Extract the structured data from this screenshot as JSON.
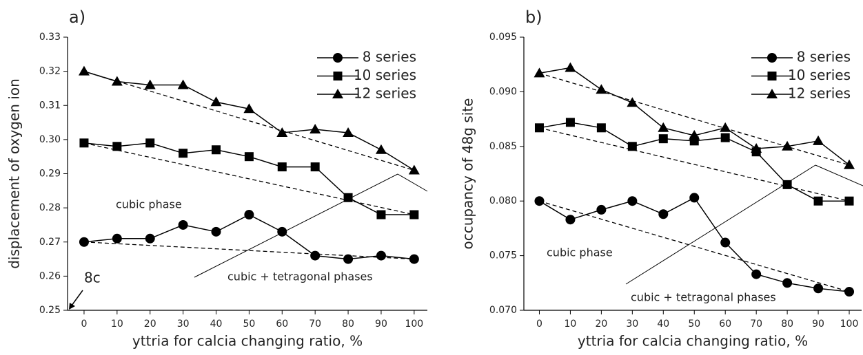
{
  "chart_data": [
    {
      "type": "line",
      "title": "a)",
      "x_label": "yttria for calcia changing ratio, %",
      "y_label": "displacement of oxygen ion",
      "x": [
        0,
        10,
        20,
        30,
        40,
        50,
        60,
        70,
        80,
        90,
        100
      ],
      "series": [
        {
          "name": "8 series",
          "color": "#000000",
          "marker": "circle",
          "values": [
            0.27,
            0.271,
            0.271,
            0.275,
            0.273,
            0.278,
            0.273,
            0.266,
            0.265,
            0.266,
            0.265
          ]
        },
        {
          "name": "10 series",
          "color": "#000000",
          "marker": "square",
          "values": [
            0.299,
            0.298,
            0.299,
            0.296,
            0.297,
            0.295,
            0.292,
            0.292,
            0.283,
            0.278,
            0.278
          ]
        },
        {
          "name": "12 series",
          "color": "#000000",
          "marker": "triangle",
          "values": [
            0.32,
            0.317,
            0.316,
            0.316,
            0.311,
            0.309,
            0.302,
            0.303,
            0.302,
            0.297,
            0.291
          ]
        }
      ],
      "trend_lines": [
        {
          "x": [
            0,
            100
          ],
          "values": [
            0.27,
            0.265
          ]
        },
        {
          "x": [
            0,
            100
          ],
          "values": [
            0.299,
            0.278
          ]
        },
        {
          "x": [
            0,
            100
          ],
          "values": [
            0.32,
            0.291
          ]
        }
      ],
      "annotations": [
        "cubic phase",
        "cubic + tetragonal phases",
        "8c"
      ],
      "xlim": [
        -5,
        104
      ],
      "xticks": [
        0,
        10,
        20,
        30,
        40,
        50,
        60,
        70,
        80,
        90,
        100
      ],
      "ylim": [
        0.25,
        0.33
      ],
      "yticks": [
        0.25,
        0.26,
        0.27,
        0.28,
        0.29,
        {
          "value": 0.3,
          "label": "0.30"
        },
        0.31,
        0.32,
        0.33
      ],
      "legend": "upper right"
    },
    {
      "type": "line",
      "title": "b)",
      "x_label": "yttria for calcia changing ratio, %",
      "y_label": "occupancy of 48g site",
      "x": [
        0,
        10,
        20,
        30,
        40,
        50,
        60,
        70,
        80,
        90,
        100
      ],
      "series": [
        {
          "name": "8 series",
          "color": "#000000",
          "marker": "circle",
          "values": [
            0.08,
            0.0783,
            0.0792,
            0.08,
            0.0788,
            0.0803,
            0.0762,
            0.0733,
            0.0725,
            0.072,
            0.0717
          ]
        },
        {
          "name": "10 series",
          "color": "#000000",
          "marker": "square",
          "values": [
            0.0867,
            0.0872,
            0.0867,
            0.085,
            0.0857,
            0.0855,
            0.0858,
            0.0845,
            0.0815,
            0.08,
            0.08
          ]
        },
        {
          "name": "12 series",
          "color": "#000000",
          "marker": "triangle",
          "values": [
            0.0917,
            0.0922,
            0.0902,
            0.089,
            0.0867,
            0.086,
            0.0867,
            0.0848,
            0.085,
            0.0855,
            0.0833
          ]
        }
      ],
      "trend_lines": [
        {
          "x": [
            0,
            100
          ],
          "values": [
            0.08,
            0.0717
          ]
        },
        {
          "x": [
            0,
            100
          ],
          "values": [
            0.0867,
            0.08
          ]
        },
        {
          "x": [
            0,
            100
          ],
          "values": [
            0.0917,
            0.0833
          ]
        }
      ],
      "annotations": [
        "cubic phase",
        "cubic + tetragonal phases"
      ],
      "xlim": [
        -5,
        104
      ],
      "xticks": [
        0,
        10,
        20,
        30,
        40,
        50,
        60,
        70,
        80,
        90,
        100
      ],
      "ylim": [
        0.07,
        0.095
      ],
      "yticks": [
        {
          "value": 0.07,
          "label": "0.070"
        },
        0.075,
        {
          "value": 0.08,
          "label": "0.080"
        },
        0.085,
        {
          "value": 0.09,
          "label": "0.090"
        },
        0.095
      ],
      "legend": "upper right"
    }
  ]
}
